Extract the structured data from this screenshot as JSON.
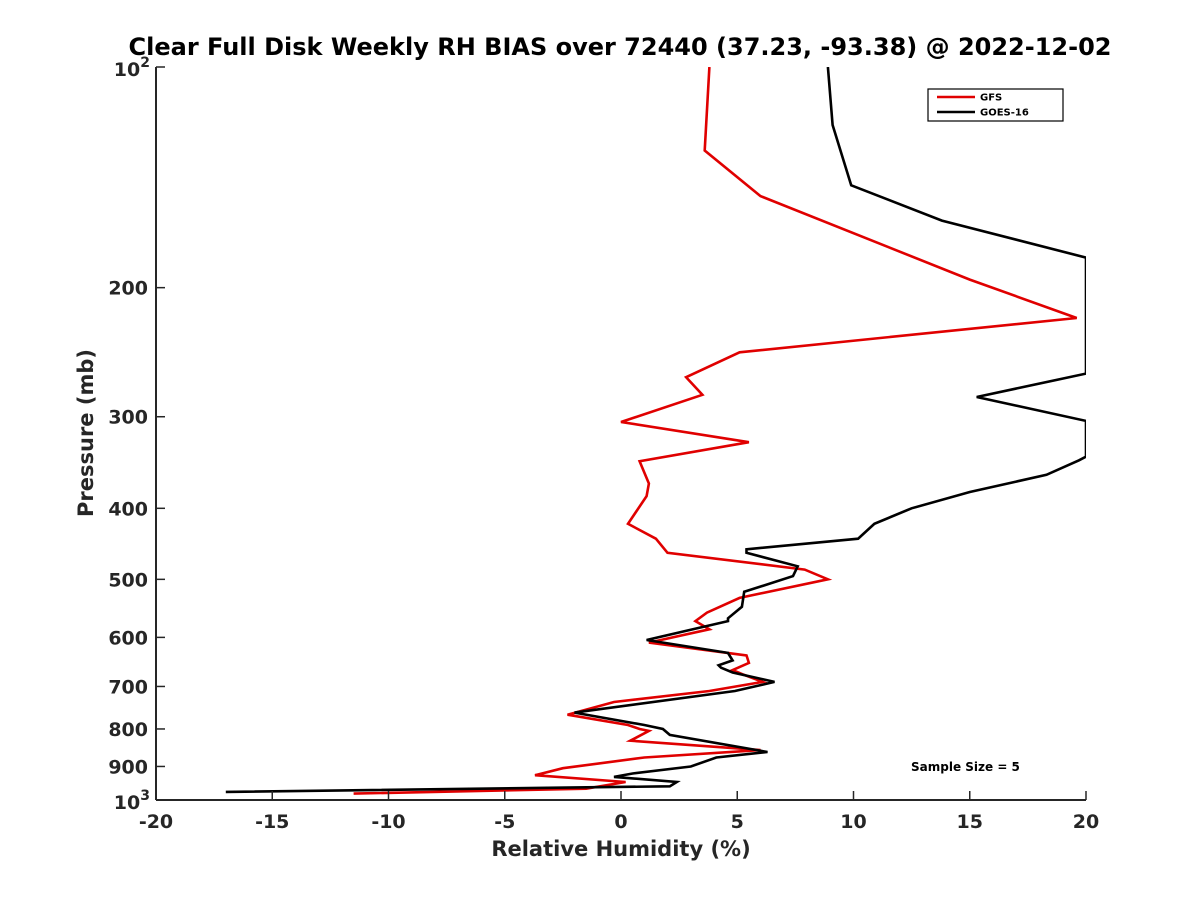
{
  "chart_data": {
    "type": "line",
    "title": "Clear Full Disk Weekly RH BIAS over 72440 (37.23, -93.38) @ 2022-12-02",
    "xlabel": "Relative Humidity (%)",
    "ylabel": "Pressure (mb)",
    "xlim": [
      -20,
      20
    ],
    "ylim": [
      100,
      1000
    ],
    "y_scale": "log",
    "y_reversed": true,
    "grid": false,
    "legend_position": "top-right",
    "x_ticks": [
      "-20",
      "-15",
      "-10",
      "-5",
      "0",
      "5",
      "10",
      "15",
      "20"
    ],
    "y_ticks": [
      {
        "value": 100,
        "label": "10",
        "sup": "2"
      },
      {
        "value": 200,
        "label": "200"
      },
      {
        "value": 300,
        "label": "300"
      },
      {
        "value": 400,
        "label": "400"
      },
      {
        "value": 500,
        "label": "500"
      },
      {
        "value": 600,
        "label": "600"
      },
      {
        "value": 700,
        "label": "700"
      },
      {
        "value": 800,
        "label": "800"
      },
      {
        "value": 900,
        "label": "900"
      },
      {
        "value": 1000,
        "label": "10",
        "sup": "3"
      }
    ],
    "annotation": "Sample Size = 5",
    "series": [
      {
        "name": "GFS",
        "color": "#e00000",
        "points": [
          [
            3.8,
            100
          ],
          [
            3.6,
            130
          ],
          [
            6.0,
            150
          ],
          [
            15.0,
            195
          ],
          [
            19.6,
            220
          ],
          [
            5.1,
            245
          ],
          [
            2.8,
            265
          ],
          [
            3.5,
            280
          ],
          [
            0.0,
            305
          ],
          [
            5.5,
            325
          ],
          [
            0.8,
            345
          ],
          [
            1.2,
            370
          ],
          [
            1.1,
            385
          ],
          [
            0.3,
            420
          ],
          [
            1.5,
            440
          ],
          [
            2.0,
            460
          ],
          [
            7.9,
            485
          ],
          [
            8.9,
            500
          ],
          [
            5.1,
            530
          ],
          [
            3.7,
            555
          ],
          [
            3.2,
            570
          ],
          [
            3.8,
            585
          ],
          [
            1.2,
            610
          ],
          [
            5.4,
            635
          ],
          [
            5.5,
            650
          ],
          [
            4.8,
            665
          ],
          [
            5.3,
            675
          ],
          [
            6.1,
            690
          ],
          [
            3.8,
            710
          ],
          [
            -0.3,
            735
          ],
          [
            -2.3,
            765
          ],
          [
            0.3,
            790
          ],
          [
            0.8,
            800
          ],
          [
            1.2,
            805
          ],
          [
            0.4,
            830
          ],
          [
            6.0,
            855
          ],
          [
            1.0,
            875
          ],
          [
            -2.5,
            905
          ],
          [
            -3.7,
            925
          ],
          [
            0.2,
            945
          ],
          [
            -1.5,
            965
          ],
          [
            -11.5,
            980
          ]
        ]
      },
      {
        "name": "GOES-16",
        "color": "#000000",
        "points": [
          [
            8.9,
            100
          ],
          [
            9.1,
            120
          ],
          [
            9.9,
            145
          ],
          [
            13.8,
            162
          ],
          [
            20.0,
            182
          ],
          [
            20.0,
            262
          ],
          [
            15.3,
            282
          ],
          [
            20.0,
            304
          ],
          [
            20.0,
            340
          ],
          [
            19.7,
            344
          ],
          [
            18.3,
            360
          ],
          [
            15.0,
            380
          ],
          [
            12.5,
            400
          ],
          [
            10.9,
            420
          ],
          [
            10.2,
            440
          ],
          [
            5.4,
            455
          ],
          [
            5.4,
            460
          ],
          [
            7.6,
            480
          ],
          [
            7.4,
            495
          ],
          [
            5.3,
            520
          ],
          [
            5.2,
            545
          ],
          [
            4.6,
            565
          ],
          [
            4.6,
            570
          ],
          [
            1.1,
            605
          ],
          [
            4.6,
            630
          ],
          [
            4.8,
            645
          ],
          [
            4.2,
            655
          ],
          [
            4.3,
            660
          ],
          [
            4.8,
            670
          ],
          [
            6.6,
            690
          ],
          [
            4.9,
            710
          ],
          [
            -2.0,
            760
          ],
          [
            1.0,
            790
          ],
          [
            1.8,
            800
          ],
          [
            2.1,
            815
          ],
          [
            6.3,
            860
          ],
          [
            4.1,
            875
          ],
          [
            3.0,
            900
          ],
          [
            0.5,
            920
          ],
          [
            -0.3,
            930
          ],
          [
            2.4,
            945
          ],
          [
            2.1,
            958
          ],
          [
            -17.0,
            975
          ]
        ]
      }
    ]
  }
}
